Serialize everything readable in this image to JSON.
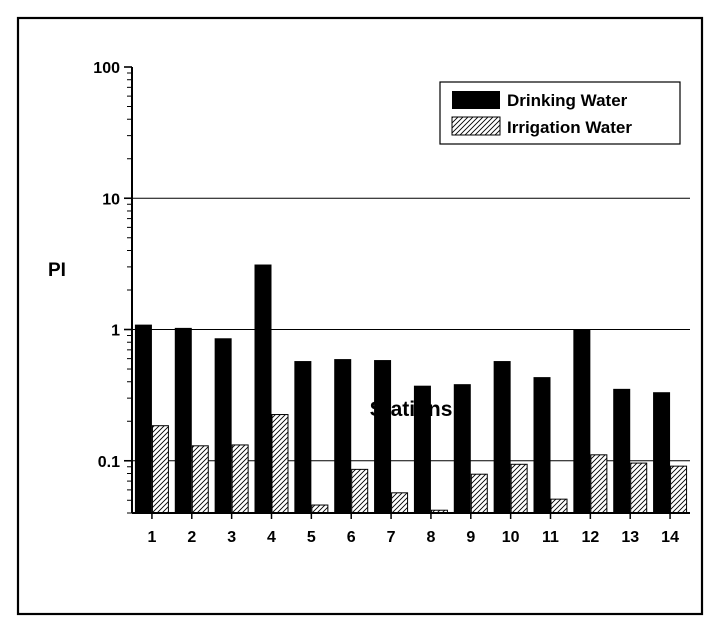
{
  "chart_data": {
    "type": "bar",
    "title": "",
    "xlabel": "Stations",
    "ylabel": "PI",
    "yscale": "log",
    "ylim": [
      0.04,
      100
    ],
    "yticks": [
      {
        "value": 0.1,
        "label": "0.1"
      },
      {
        "value": 1,
        "label": "1"
      },
      {
        "value": 10,
        "label": "10"
      },
      {
        "value": 100,
        "label": "100"
      }
    ],
    "grid": "horizontal at major ticks",
    "legend_position": "top-right",
    "categories": [
      "1",
      "2",
      "3",
      "4",
      "5",
      "6",
      "7",
      "8",
      "9",
      "10",
      "11",
      "12",
      "13",
      "14"
    ],
    "series": [
      {
        "name": "Drinking Water",
        "pattern": "solid",
        "color": "#000000",
        "values": [
          1.08,
          1.02,
          0.85,
          3.1,
          0.57,
          0.59,
          0.58,
          0.37,
          0.38,
          0.57,
          0.43,
          0.99,
          0.35,
          0.33
        ]
      },
      {
        "name": "Irrigation Water",
        "pattern": "diagonal-hatch",
        "color": "#000000",
        "values": [
          0.185,
          0.13,
          0.132,
          0.225,
          0.046,
          0.086,
          0.057,
          0.042,
          0.079,
          0.094,
          0.051,
          0.111,
          0.096,
          0.091
        ]
      }
    ]
  }
}
